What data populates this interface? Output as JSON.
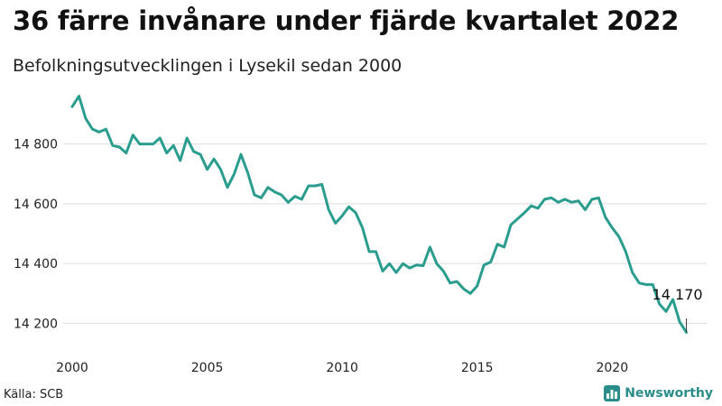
{
  "header": {
    "title": "36 färre invånare under fjärde kvartalet 2022",
    "subtitle": "Befolkningsutvecklingen i Lysekil sedan 2000"
  },
  "footer": {
    "source": "Källa: SCB",
    "brand": "Newsworthy",
    "brand_icon": "bar-chart-icon"
  },
  "colors": {
    "line": "#2a9d8f",
    "grid": "#dddddd",
    "brand": "#2a8d89"
  },
  "chart_data": {
    "type": "line",
    "title": "36 färre invånare under fjärde kvartalet 2022",
    "subtitle": "Befolkningsutvecklingen i Lysekil sedan 2000",
    "xlabel": "",
    "ylabel": "",
    "xlim": [
      2000,
      2023.5
    ],
    "ylim": [
      14150,
      14980
    ],
    "x_ticks": [
      2000,
      2005,
      2010,
      2015,
      2020
    ],
    "y_ticks": [
      14200,
      14400,
      14600,
      14800
    ],
    "y_tick_labels": [
      "14 200",
      "14 400",
      "14 600",
      "14 800"
    ],
    "grid": "horizontal",
    "annotation": {
      "x": 2022.75,
      "y": 14170,
      "label": "14 170"
    },
    "x": [
      2000.0,
      2000.25,
      2000.5,
      2000.75,
      2001.0,
      2001.25,
      2001.5,
      2001.75,
      2002.0,
      2002.25,
      2002.5,
      2002.75,
      2003.0,
      2003.25,
      2003.5,
      2003.75,
      2004.0,
      2004.25,
      2004.5,
      2004.75,
      2005.0,
      2005.25,
      2005.5,
      2005.75,
      2006.0,
      2006.25,
      2006.5,
      2006.75,
      2007.0,
      2007.25,
      2007.5,
      2007.75,
      2008.0,
      2008.25,
      2008.5,
      2008.75,
      2009.0,
      2009.25,
      2009.5,
      2009.75,
      2010.0,
      2010.25,
      2010.5,
      2010.75,
      2011.0,
      2011.25,
      2011.5,
      2011.75,
      2012.0,
      2012.25,
      2012.5,
      2012.75,
      2013.0,
      2013.25,
      2013.5,
      2013.75,
      2014.0,
      2014.25,
      2014.5,
      2014.75,
      2015.0,
      2015.25,
      2015.5,
      2015.75,
      2016.0,
      2016.25,
      2016.5,
      2016.75,
      2017.0,
      2017.25,
      2017.5,
      2017.75,
      2018.0,
      2018.25,
      2018.5,
      2018.75,
      2019.0,
      2019.25,
      2019.5,
      2019.75,
      2020.0,
      2020.25,
      2020.5,
      2020.75,
      2021.0,
      2021.25,
      2021.5,
      2021.75,
      2022.0,
      2022.25,
      2022.5,
      2022.75
    ],
    "series": [
      {
        "values": [
          14925,
          14960,
          14885,
          14850,
          14840,
          14850,
          14795,
          14790,
          14770,
          14830,
          14800,
          14800,
          14800,
          14820,
          14770,
          14795,
          14745,
          14820,
          14775,
          14765,
          14715,
          14750,
          14715,
          14655,
          14700,
          14765,
          14705,
          14630,
          14620,
          14655,
          14640,
          14630,
          14605,
          14625,
          14615,
          14660,
          14660,
          14665,
          14580,
          14535,
          14560,
          14590,
          14570,
          14520,
          14440,
          14440,
          14375,
          14400,
          14370,
          14400,
          14385,
          14395,
          14393,
          14455,
          14400,
          14375,
          14335,
          14340,
          14315,
          14300,
          14325,
          14395,
          14405,
          14465,
          14455,
          14530,
          14550,
          14570,
          14593,
          14585,
          14615,
          14620,
          14605,
          14615,
          14605,
          14610,
          14580,
          14615,
          14620,
          14555,
          14520,
          14490,
          14440,
          14370,
          14335,
          14330,
          14330,
          14265,
          14240,
          14280,
          14205,
          14170
        ]
      }
    ]
  }
}
